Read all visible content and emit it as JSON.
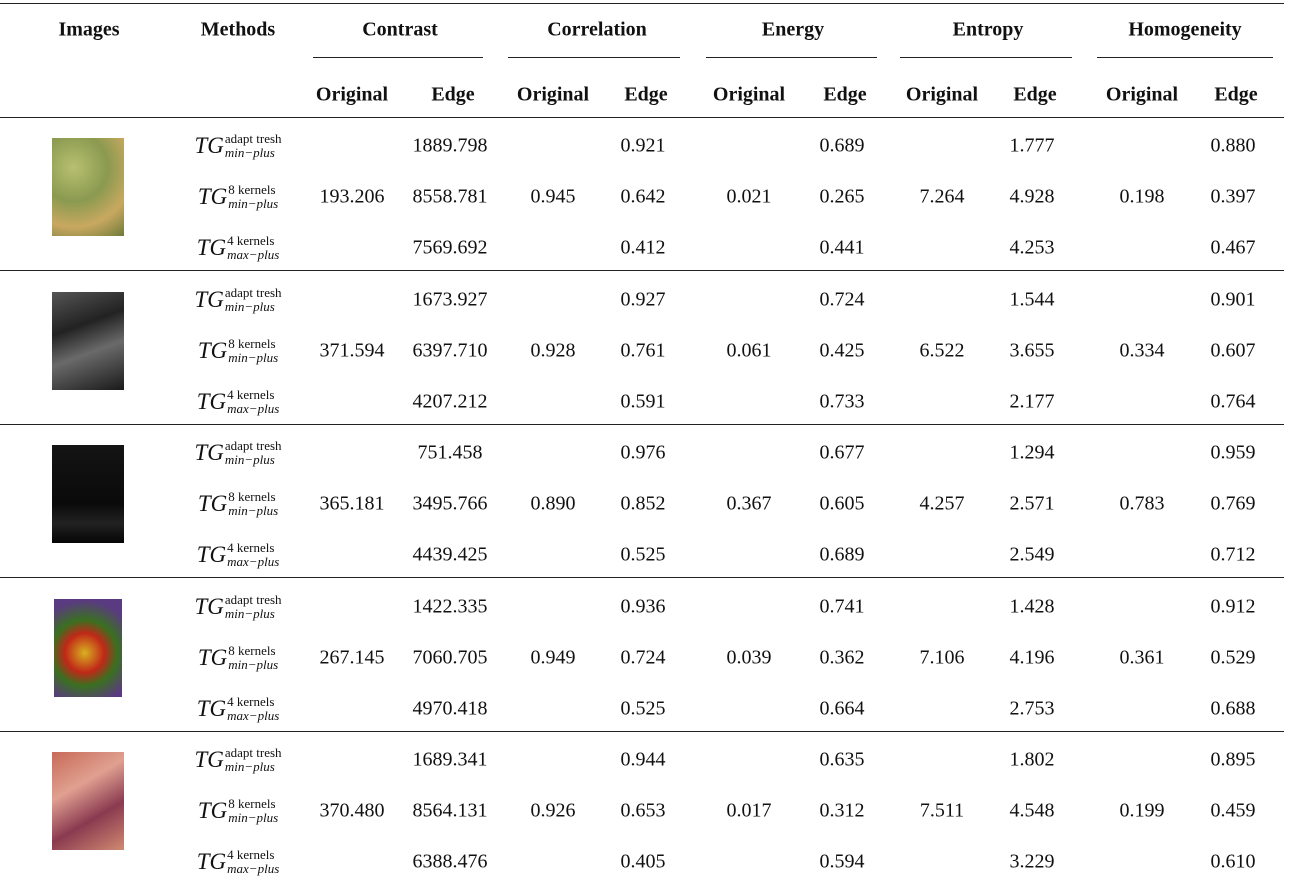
{
  "header": {
    "images": "Images",
    "methods": "Methods",
    "groups": [
      "Contrast",
      "Correlation",
      "Energy",
      "Entropy",
      "Homogeneity"
    ],
    "subheaders": [
      "Original",
      "Edge"
    ]
  },
  "methods": [
    {
      "base": "TG",
      "sup": "adapt tresh",
      "sub": "min−plus"
    },
    {
      "base": "TG",
      "sup": "8 kernels",
      "sub": "min−plus"
    },
    {
      "base": "TG",
      "sup": "4 kernels",
      "sub": "max−plus"
    }
  ],
  "table": {
    "rows": [
      {
        "original": [
          "193.206",
          "0.945",
          "0.021",
          "7.264",
          "0.198"
        ],
        "edge": [
          [
            "1889.798",
            "0.921",
            "0.689",
            "1.777",
            "0.880"
          ],
          [
            "8558.781",
            "0.642",
            "0.265",
            "4.928",
            "0.397"
          ],
          [
            "7569.692",
            "0.412",
            "0.441",
            "4.253",
            "0.467"
          ]
        ]
      },
      {
        "original": [
          "371.594",
          "0.928",
          "0.061",
          "6.522",
          "0.334"
        ],
        "edge": [
          [
            "1673.927",
            "0.927",
            "0.724",
            "1.544",
            "0.901"
          ],
          [
            "6397.710",
            "0.761",
            "0.425",
            "3.655",
            "0.607"
          ],
          [
            "4207.212",
            "0.591",
            "0.733",
            "2.177",
            "0.764"
          ]
        ]
      },
      {
        "original": [
          "365.181",
          "0.890",
          "0.367",
          "4.257",
          "0.783"
        ],
        "edge": [
          [
            "751.458",
            "0.976",
            "0.677",
            "1.294",
            "0.959"
          ],
          [
            "3495.766",
            "0.852",
            "0.605",
            "2.571",
            "0.769"
          ],
          [
            "4439.425",
            "0.525",
            "0.689",
            "2.549",
            "0.712"
          ]
        ]
      },
      {
        "original": [
          "267.145",
          "0.949",
          "0.039",
          "7.106",
          "0.361"
        ],
        "edge": [
          [
            "1422.335",
            "0.936",
            "0.741",
            "1.428",
            "0.912"
          ],
          [
            "7060.705",
            "0.724",
            "0.362",
            "4.196",
            "0.529"
          ],
          [
            "4970.418",
            "0.525",
            "0.664",
            "2.753",
            "0.688"
          ]
        ]
      },
      {
        "original": [
          "370.480",
          "0.926",
          "0.017",
          "7.511",
          "0.199"
        ],
        "edge": [
          [
            "1689.341",
            "0.944",
            "0.635",
            "1.802",
            "0.895"
          ],
          [
            "8564.131",
            "0.653",
            "0.312",
            "4.548",
            "0.459"
          ],
          [
            "6388.476",
            "0.405",
            "0.594",
            "3.229",
            "0.610"
          ]
        ]
      }
    ]
  }
}
